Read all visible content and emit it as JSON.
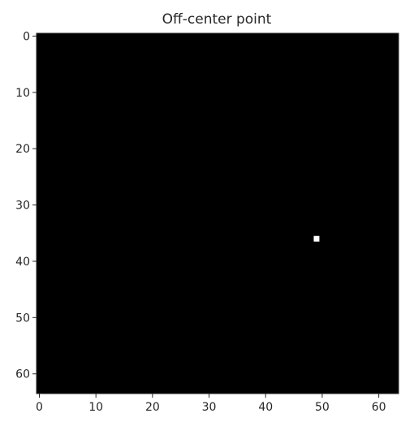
{
  "chart_data": {
    "type": "heatmap",
    "title": "Off-center point",
    "xlabel": "",
    "ylabel": "",
    "width": 64,
    "height": 64,
    "xlim": [
      -0.5,
      63.5
    ],
    "ylim": [
      63.5,
      -0.5
    ],
    "y_axis_inverted": true,
    "colormap": "gray",
    "background_value": 0,
    "points": [
      {
        "x": 49,
        "y": 36,
        "value": 1
      }
    ],
    "xticks": [
      0,
      10,
      20,
      30,
      40,
      50,
      60
    ],
    "yticks": [
      0,
      10,
      20,
      30,
      40,
      50,
      60
    ],
    "xtick_labels": [
      "0",
      "10",
      "20",
      "30",
      "40",
      "50",
      "60"
    ],
    "ytick_labels": [
      "0",
      "10",
      "20",
      "30",
      "40",
      "50",
      "60"
    ],
    "grid": false,
    "legend": "none",
    "colors": {
      "background": "#000000",
      "point": "#ffffff",
      "axes": "#262626",
      "text": "#262626"
    }
  }
}
